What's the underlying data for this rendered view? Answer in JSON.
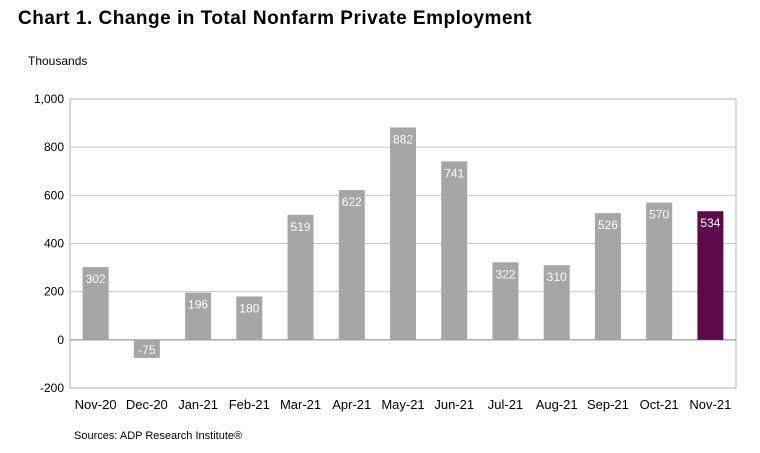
{
  "title": "Chart 1. Change in Total Nonfarm Private Employment",
  "unit_label": "Thousands",
  "source": "Sources: ADP Research Institute®",
  "chart_data": {
    "type": "bar",
    "categories": [
      "Nov-20",
      "Dec-20",
      "Jan-21",
      "Feb-21",
      "Mar-21",
      "Apr-21",
      "May-21",
      "Jun-21",
      "Jul-21",
      "Aug-21",
      "Sep-21",
      "Oct-21",
      "Nov-21"
    ],
    "values": [
      302,
      -75,
      196,
      180,
      519,
      622,
      882,
      741,
      322,
      310,
      526,
      570,
      534
    ],
    "data_labels": [
      "302",
      "-75",
      "196",
      "180",
      "519",
      "622",
      "882",
      "741",
      "322",
      "310",
      "526",
      "570",
      "534"
    ],
    "ylim": [
      -200,
      1000
    ],
    "yticks": [
      -200,
      0,
      200,
      400,
      600,
      800,
      1000
    ],
    "ytick_labels": [
      "-200",
      "0",
      "200",
      "400",
      "600",
      "800",
      "1,000"
    ],
    "grid": true,
    "bar_color": "#a6a6a6",
    "highlight_color": "#5c0a4a",
    "highlight_index": 12,
    "label_color": "#ffffff",
    "grid_color": "#c8c8c8"
  }
}
